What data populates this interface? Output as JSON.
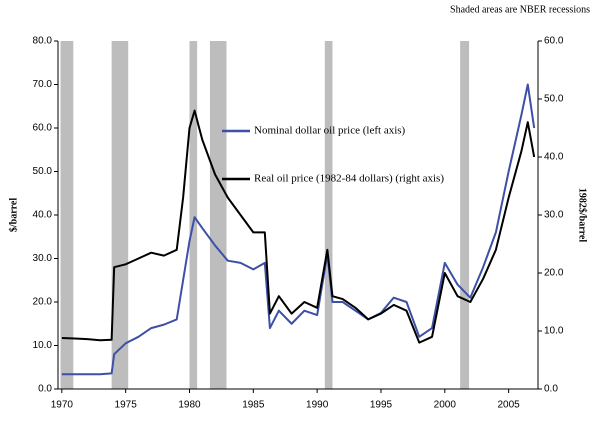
{
  "chart_data": {
    "type": "line",
    "note": "Shaded areas are NBER recessions",
    "ylabel": "$/barrel",
    "y2label": "1982$/barrel",
    "x": [
      1970,
      1971,
      1972,
      1973,
      1973.9,
      1974.1,
      1975,
      1976,
      1977,
      1978,
      1979,
      1979.5,
      1980,
      1980.4,
      1981,
      1982,
      1983,
      1984,
      1985,
      1985.9,
      1986.3,
      1987,
      1988,
      1989,
      1990,
      1990.8,
      1991.2,
      1992,
      1993,
      1994,
      1995,
      1996,
      1997,
      1998,
      1999,
      2000,
      2001,
      2002,
      2003,
      2004,
      2005,
      2006,
      2006.5,
      2007
    ],
    "series": [
      {
        "name": "Nominal dollar oil price (left axis)",
        "color": "#3d4fa6",
        "axis": "y",
        "values": [
          3.4,
          3.4,
          3.4,
          3.4,
          3.6,
          8,
          10.5,
          12,
          14,
          14.8,
          16,
          25,
          34,
          39.5,
          37,
          33,
          29.5,
          29,
          27.5,
          29,
          14,
          18,
          15,
          18,
          17,
          31,
          20,
          20,
          18,
          16,
          17.5,
          21,
          20,
          12,
          14,
          29,
          24,
          21,
          28,
          36,
          50,
          63,
          70,
          60
        ]
      },
      {
        "name": "Real oil price (1982-84 dollars) (right axis)",
        "color": "#000000",
        "axis": "y2",
        "values": [
          8.8,
          8.7,
          8.6,
          8.4,
          8.5,
          21,
          21.5,
          22.5,
          23.5,
          23,
          24,
          33,
          45,
          48,
          43,
          37,
          33,
          30,
          27,
          27,
          13,
          16,
          13,
          15,
          14,
          24,
          16,
          15.5,
          14,
          12,
          13,
          14.5,
          13.5,
          8,
          9,
          20,
          16,
          15,
          19,
          24,
          33,
          41,
          46,
          40
        ]
      }
    ],
    "recessions": [
      [
        1969.9,
        1970.9
      ],
      [
        1973.9,
        1975.2
      ],
      [
        1980.0,
        1980.6
      ],
      [
        1981.6,
        1982.9
      ],
      [
        1990.6,
        1991.2
      ],
      [
        2001.2,
        2001.9
      ]
    ],
    "recession_color": "#bdbdbd",
    "xlim": [
      1969.7,
      2007.3
    ],
    "xticks": [
      1970,
      1975,
      1980,
      1985,
      1990,
      1995,
      2000,
      2005
    ],
    "ylim": [
      0,
      80
    ],
    "yticks": [
      {
        "value": 0,
        "label": "0.0"
      },
      {
        "value": 10,
        "label": "10.0"
      },
      {
        "value": 20,
        "label": "20.0"
      },
      {
        "value": 30,
        "label": "30.0"
      },
      {
        "value": 40,
        "label": "40.0"
      },
      {
        "value": 50,
        "label": "50.0"
      },
      {
        "value": 60,
        "label": "60.0"
      },
      {
        "value": 70,
        "label": "70.0"
      },
      {
        "value": 80,
        "label": "80.0"
      }
    ],
    "y2lim": [
      0,
      60
    ],
    "y2ticks": [
      {
        "value": 0,
        "label": "0.0"
      },
      {
        "value": 10,
        "label": "10.0"
      },
      {
        "value": 20,
        "label": "20.0"
      },
      {
        "value": 30,
        "label": "30.0"
      },
      {
        "value": 40,
        "label": "40.0"
      },
      {
        "value": 50,
        "label": "50.0"
      },
      {
        "value": 60,
        "label": "60.0"
      }
    ],
    "grid": false
  }
}
